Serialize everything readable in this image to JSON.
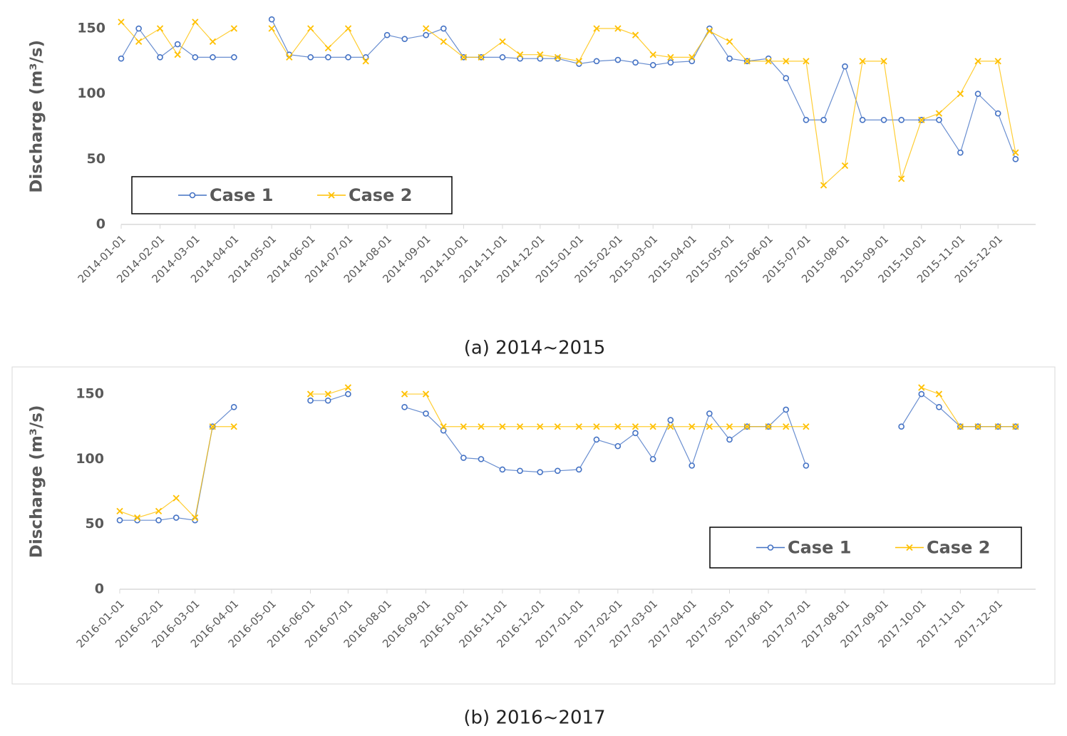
{
  "chart_data": [
    {
      "type": "line",
      "caption": "(a) 2014~2015",
      "y_label": "Discharge (m³/s)",
      "x": [
        "2014-01-01",
        "2014-01-15",
        "2014-02-01",
        "2014-02-15",
        "2014-03-01",
        "2014-03-15",
        "2014-04-01",
        "2014-04-15",
        "2014-05-01",
        "2014-05-15",
        "2014-06-01",
        "2014-06-15",
        "2014-07-01",
        "2014-07-15",
        "2014-08-01",
        "2014-08-15",
        "2014-09-01",
        "2014-09-15",
        "2014-10-01",
        "2014-10-15",
        "2014-11-01",
        "2014-11-15",
        "2014-12-01",
        "2014-12-15",
        "2015-01-01",
        "2015-01-15",
        "2015-02-01",
        "2015-02-15",
        "2015-03-01",
        "2015-03-15",
        "2015-04-01",
        "2015-04-15",
        "2015-05-01",
        "2015-05-15",
        "2015-06-01",
        "2015-06-15",
        "2015-07-01",
        "2015-07-15",
        "2015-08-01",
        "2015-08-15",
        "2015-09-01",
        "2015-09-15",
        "2015-10-01",
        "2015-10-15",
        "2015-11-01",
        "2015-11-15",
        "2015-12-01",
        "2015-12-15"
      ],
      "series": [
        {
          "name": "Case 1",
          "color": "#4472c4",
          "marker": "circle",
          "values": [
            127,
            150,
            128,
            138,
            128,
            128,
            128,
            null,
            157,
            130,
            128,
            128,
            128,
            128,
            145,
            142,
            145,
            150,
            128,
            128,
            128,
            127,
            127,
            127,
            123,
            125,
            126,
            124,
            122,
            124,
            125,
            150,
            127,
            125,
            127,
            112,
            80,
            80,
            121,
            80,
            80,
            80,
            80,
            80,
            55,
            100,
            85,
            50
          ]
        },
        {
          "name": "Case 2",
          "color": "#ffc000",
          "marker": "x",
          "values": [
            155,
            140,
            150,
            130,
            155,
            140,
            150,
            null,
            150,
            128,
            150,
            135,
            150,
            125,
            null,
            null,
            150,
            140,
            128,
            128,
            140,
            130,
            130,
            128,
            125,
            150,
            150,
            145,
            130,
            128,
            128,
            148,
            140,
            125,
            125,
            125,
            125,
            30,
            45,
            125,
            125,
            35,
            80,
            85,
            100,
            125,
            125,
            55
          ]
        }
      ],
      "xlim": [
        "2014-01-01",
        "2015-12-31"
      ],
      "xticks": [
        "2014-01-01",
        "2014-02-01",
        "2014-03-01",
        "2014-04-01",
        "2014-05-01",
        "2014-06-01",
        "2014-07-01",
        "2014-08-01",
        "2014-09-01",
        "2014-10-01",
        "2014-11-01",
        "2014-12-01",
        "2015-01-01",
        "2015-02-01",
        "2015-03-01",
        "2015-04-01",
        "2015-05-01",
        "2015-06-01",
        "2015-07-01",
        "2015-08-01",
        "2015-09-01",
        "2015-10-01",
        "2015-11-01",
        "2015-12-01"
      ],
      "ylim": [
        0,
        160
      ],
      "yticks": [
        0,
        50,
        100,
        150
      ],
      "legend": "lower left"
    },
    {
      "type": "line",
      "caption": "(b) 2016~2017",
      "y_label": "Discharge (m³/s)",
      "x": [
        "2016-01-01",
        "2016-01-15",
        "2016-02-01",
        "2016-02-15",
        "2016-03-01",
        "2016-03-15",
        "2016-04-01",
        "2016-04-15",
        "2016-05-01",
        "2016-05-15",
        "2016-06-01",
        "2016-06-15",
        "2016-07-01",
        "2016-07-15",
        "2016-08-01",
        "2016-08-15",
        "2016-09-01",
        "2016-09-15",
        "2016-10-01",
        "2016-10-15",
        "2016-11-01",
        "2016-11-15",
        "2016-12-01",
        "2016-12-15",
        "2017-01-01",
        "2017-01-15",
        "2017-02-01",
        "2017-02-15",
        "2017-03-01",
        "2017-03-15",
        "2017-04-01",
        "2017-04-15",
        "2017-05-01",
        "2017-05-15",
        "2017-06-01",
        "2017-06-15",
        "2017-07-01",
        "2017-07-15",
        "2017-08-01",
        "2017-08-15",
        "2017-09-01",
        "2017-09-15",
        "2017-10-01",
        "2017-10-15",
        "2017-11-01",
        "2017-11-15",
        "2017-12-01",
        "2017-12-15"
      ],
      "series": [
        {
          "name": "Case 1",
          "color": "#4472c4",
          "marker": "circle",
          "values": [
            53,
            53,
            53,
            55,
            53,
            125,
            140,
            null,
            null,
            null,
            145,
            145,
            150,
            null,
            null,
            140,
            135,
            122,
            101,
            100,
            92,
            91,
            90,
            91,
            92,
            115,
            110,
            120,
            100,
            130,
            95,
            135,
            115,
            125,
            125,
            138,
            95,
            null,
            null,
            null,
            null,
            125,
            150,
            140,
            125,
            125,
            125,
            125
          ]
        },
        {
          "name": "Case 2",
          "color": "#ffc000",
          "marker": "x",
          "values": [
            60,
            55,
            60,
            70,
            55,
            125,
            125,
            null,
            null,
            null,
            150,
            150,
            155,
            null,
            null,
            150,
            150,
            125,
            125,
            125,
            125,
            125,
            125,
            125,
            125,
            125,
            125,
            125,
            125,
            125,
            125,
            125,
            125,
            125,
            125,
            125,
            125,
            null,
            null,
            null,
            null,
            null,
            155,
            150,
            125,
            125,
            125,
            125
          ]
        }
      ],
      "xlim": [
        "2016-01-01",
        "2017-12-31"
      ],
      "xticks": [
        "2016-01-01",
        "2016-02-01",
        "2016-03-01",
        "2016-04-01",
        "2016-05-01",
        "2016-06-01",
        "2016-07-01",
        "2016-08-01",
        "2016-09-01",
        "2016-10-01",
        "2016-11-01",
        "2016-12-01",
        "2017-01-01",
        "2017-02-01",
        "2017-03-01",
        "2017-04-01",
        "2017-05-01",
        "2017-06-01",
        "2017-07-01",
        "2017-08-01",
        "2017-09-01",
        "2017-10-01",
        "2017-11-01",
        "2017-12-01"
      ],
      "ylim": [
        0,
        160
      ],
      "yticks": [
        0,
        50,
        100,
        150
      ],
      "legend": "lower right"
    }
  ]
}
